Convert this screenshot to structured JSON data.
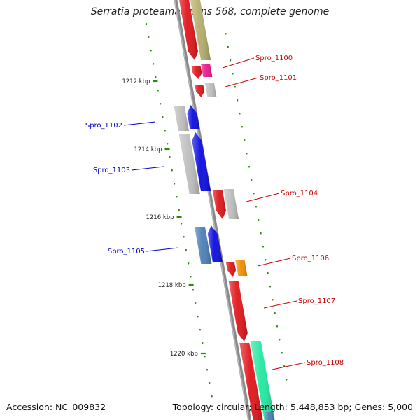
{
  "title": "Serratia proteamaculans 568, complete genome",
  "footer": {
    "accession": "Accession: NC_009832",
    "summary": "Topology: circular; Length: 5,448,853 bp; Genes: 5,000"
  },
  "ruler_labels": [
    "1212 kbp",
    "1214 kbp",
    "1216 kbp",
    "1218 kbp",
    "1220 kbp"
  ],
  "genes": [
    {
      "name": "Spro_1100",
      "color": "#e8188c"
    },
    {
      "name": "Spro_1101",
      "color": "#bdbdbd"
    },
    {
      "name": "Spro_1102",
      "color": "#0b0be0"
    },
    {
      "name": "Spro_1103",
      "color": "#0b0be0"
    },
    {
      "name": "Spro_1104",
      "color": "#bdbdbd"
    },
    {
      "name": "Spro_1105",
      "color": "#0b0be0"
    },
    {
      "name": "Spro_1106",
      "color": "#f28c00"
    },
    {
      "name": "Spro_1107",
      "color": "#e0151a"
    },
    {
      "name": "Spro_1108",
      "color": "#21e8a0"
    }
  ],
  "colors": {
    "forward_label": "#cc0000",
    "reverse_label": "#0000cc",
    "backbone": "#8a8a8a",
    "tick": "#2a8a10",
    "cog_red": "#e0151a",
    "cog_gray": "#bdbdbd",
    "cog_olive": "#b5ad6a",
    "cog_steel": "#4a7fb5"
  }
}
